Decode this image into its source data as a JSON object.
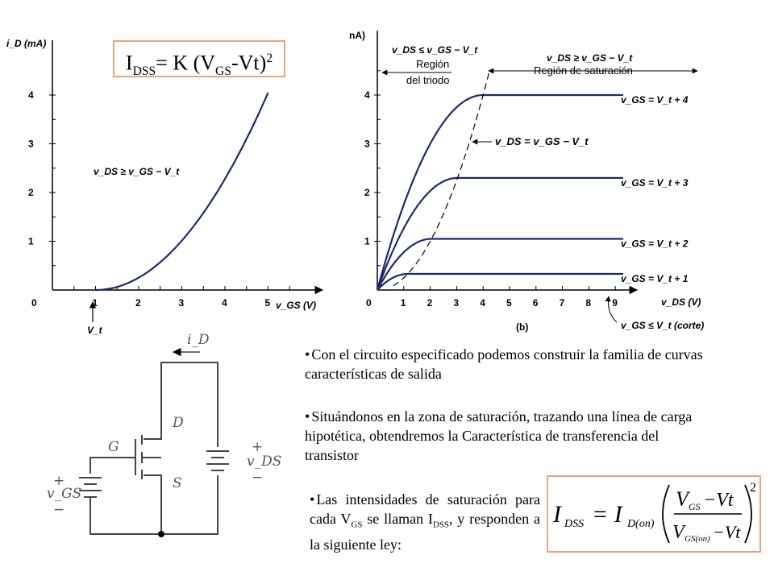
{
  "left_chart": {
    "y_axis_label": "i_D (mA)",
    "y_ticks": [
      "1",
      "2",
      "3",
      "4"
    ],
    "x_ticks": [
      "0",
      "1",
      "2",
      "3",
      "4",
      "5"
    ],
    "x_axis_label": "v_GS (V)",
    "condition": "v_DS ≥ v_GS − V_t",
    "vt_marker": "V_t"
  },
  "formula_top": {
    "lhs_main": "I",
    "lhs_sub": "DSS",
    "rhs": "= K (V",
    "rhs_sub": "GS",
    "rhs_tail": "-Vt)",
    "exp": "2"
  },
  "right_chart": {
    "y_axis_label": "nA)",
    "y_ticks": [
      "1",
      "2",
      "3",
      "4"
    ],
    "x_ticks": [
      "0",
      "1",
      "2",
      "3",
      "4",
      "5",
      "6",
      "7",
      "8",
      "9"
    ],
    "x_axis_label": "v_DS (V)",
    "figure_label": "(b)",
    "triode_condition": "v_DS ≤ v_GS − V_t",
    "triode_label_1": "Región",
    "triode_label_2": "del triodo",
    "sat_condition": "v_DS ≥ v_GS − V_t",
    "sat_label": "Región de saturación",
    "boundary_label": "v_DS = v_GS − V_t",
    "curve_labels": [
      "v_GS = V_t + 4",
      "v_GS = V_t + 3",
      "v_GS = V_t + 2",
      "v_GS = V_t + 1"
    ],
    "cutoff_label": "v_GS ≤ V_t (corte)"
  },
  "circuit": {
    "current_label": "i_D",
    "gate": "G",
    "drain": "D",
    "source": "S",
    "vds_plus": "+",
    "vds": "v_DS",
    "vds_minus": "−",
    "vgs_plus": "+",
    "vgs": "v_GS",
    "vgs_minus": "−"
  },
  "bullets": [
    "Con el circuito especificado  podemos construir la familia de curvas características de salida",
    "Situándonos en la zona de saturación, trazando una línea de carga hipotética, obtendremos la Característica de transferencia del transistor"
  ],
  "bullet3": {
    "pre": "Las intensidades de saturación para cada V",
    "sub1": "GS",
    "mid": " se llaman I",
    "sub2": "DSS",
    "post": ", y responden a la siguiente ley:"
  },
  "formula_bottom": {
    "lhs": "I",
    "lhs_sub": "DSS",
    "eq": "= I",
    "eq_sub": "D(on)",
    "num": "V",
    "num_sub": "GS",
    "num_tail": "−Vt",
    "den": "V",
    "den_sub": "GS(on)",
    "den_tail": "−Vt",
    "exp": "2"
  },
  "chart_data": [
    {
      "type": "line",
      "x": [
        1,
        1.5,
        2,
        2.5,
        3,
        3.5,
        4,
        4.5,
        5
      ],
      "series": [
        {
          "values": [
            0,
            0.05,
            0.16,
            0.42,
            0.9,
            1.5,
            2.25,
            3.1,
            4.05
          ]
        }
      ],
      "xlabel": "v_GS (V)",
      "ylabel": "i_D (mA)",
      "ylim": [
        0,
        4.5
      ],
      "xlim": [
        0,
        5.6
      ]
    },
    {
      "type": "line",
      "x": [
        0,
        1,
        2,
        3,
        4,
        5,
        6,
        7,
        8,
        9
      ],
      "series": [
        {
          "name": "v_GS = V_t + 4",
          "values": [
            0,
            2.3,
            3.4,
            3.85,
            4.0,
            4.0,
            4.0,
            4.0,
            4.0,
            4.0
          ]
        },
        {
          "name": "v_GS = V_t + 3",
          "values": [
            0,
            1.5,
            2.1,
            2.3,
            2.3,
            2.3,
            2.3,
            2.3,
            2.3,
            2.3
          ]
        },
        {
          "name": "v_GS = V_t + 2",
          "values": [
            0,
            0.75,
            1.05,
            1.05,
            1.05,
            1.05,
            1.05,
            1.05,
            1.05,
            1.05
          ]
        },
        {
          "name": "v_GS = V_t + 1",
          "values": [
            0,
            0.33,
            0.33,
            0.33,
            0.33,
            0.33,
            0.33,
            0.33,
            0.33,
            0.33
          ]
        }
      ],
      "xlabel": "v_DS (V)",
      "ylim": [
        0,
        4.5
      ],
      "xlim": [
        0,
        9.5
      ]
    }
  ]
}
